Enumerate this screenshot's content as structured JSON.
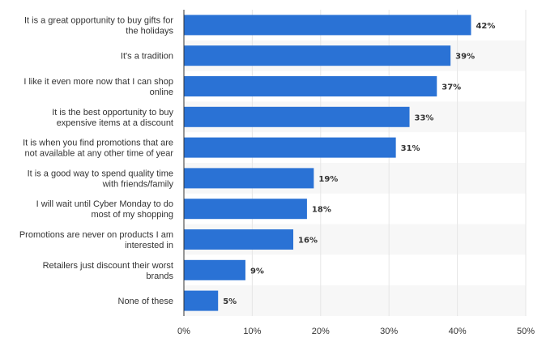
{
  "chart_data": {
    "type": "bar",
    "orientation": "horizontal",
    "categories": [
      [
        "It is a great opportunity to buy gifts for",
        "the holidays"
      ],
      [
        "It's a tradition"
      ],
      [
        "I like it even more now that I can shop",
        "online"
      ],
      [
        "It is the best opportunity to buy",
        "expensive items at a discount"
      ],
      [
        "It is when you find promotions that are",
        "not available at any other time of year"
      ],
      [
        "It is a good way to spend quality time",
        "with friends/family"
      ],
      [
        "I will wait until Cyber Monday to do",
        "most of my shopping"
      ],
      [
        "Promotions are never on products I am",
        "interested in"
      ],
      [
        "Retailers just discount their worst",
        "brands"
      ],
      [
        "None of these"
      ]
    ],
    "values": [
      42,
      39,
      37,
      33,
      31,
      19,
      18,
      16,
      9,
      5
    ],
    "data_labels": [
      "42%",
      "39%",
      "37%",
      "33%",
      "31%",
      "19%",
      "18%",
      "16%",
      "9%",
      "5%"
    ],
    "x_ticks": [
      0,
      10,
      20,
      30,
      40,
      50
    ],
    "x_tick_labels": [
      "0%",
      "10%",
      "20%",
      "30%",
      "40%",
      "50%"
    ],
    "xlim": [
      0,
      50
    ],
    "title": "",
    "xlabel": "",
    "ylabel": "",
    "grid": true,
    "bar_color": "#2a72d5",
    "alt_row_color": "#f7f7f7",
    "grid_color": "#e6e6e6"
  }
}
